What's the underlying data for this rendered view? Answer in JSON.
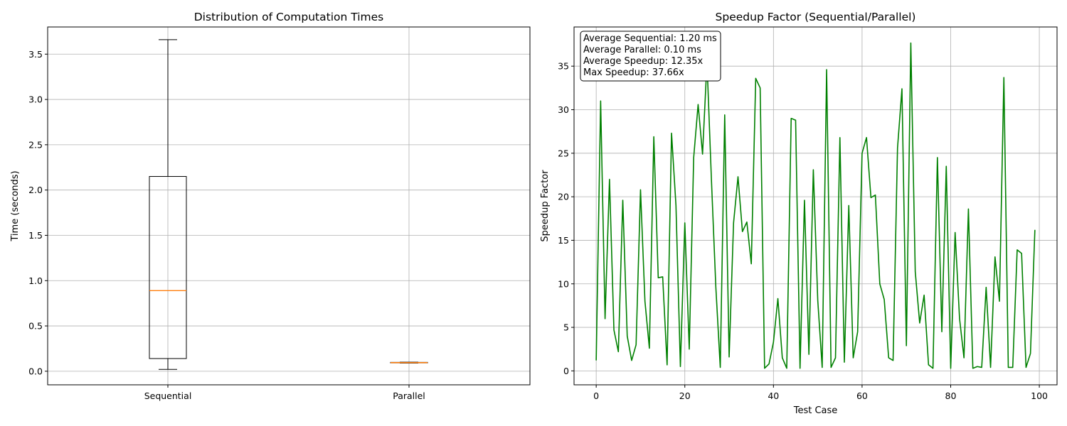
{
  "chart_data": [
    {
      "type": "box",
      "title": "Distribution of Computation Times",
      "xlabel": "",
      "ylabel": "Time (seconds)",
      "ylim": [
        -0.15,
        3.8
      ],
      "yticks": [
        0.0,
        0.5,
        1.0,
        1.5,
        2.0,
        2.5,
        3.0,
        3.5
      ],
      "ytick_labels": [
        "0.0",
        "0.5",
        "1.0",
        "1.5",
        "2.0",
        "2.5",
        "3.0",
        "3.5"
      ],
      "grid": true,
      "categories": [
        "Sequential",
        "Parallel"
      ],
      "boxes": [
        {
          "name": "Sequential",
          "whisker_low": 0.02,
          "q1": 0.14,
          "median": 0.89,
          "q3": 2.15,
          "whisker_high": 3.66
        },
        {
          "name": "Parallel",
          "whisker_low": 0.09,
          "q1": 0.092,
          "median": 0.095,
          "q3": 0.098,
          "whisker_high": 0.1
        }
      ],
      "colors": {
        "box": "#000000",
        "median": "#ff7f0e",
        "grid": "#b0b0b0"
      }
    },
    {
      "type": "line",
      "title": "Speedup Factor (Sequential/Parallel)",
      "xlabel": "Test Case",
      "ylabel": "Speedup Factor",
      "xlim": [
        -5,
        104
      ],
      "ylim": [
        -1.6,
        39.5
      ],
      "xticks": [
        0,
        20,
        40,
        60,
        80,
        100
      ],
      "xtick_labels": [
        "0",
        "20",
        "40",
        "60",
        "80",
        "100"
      ],
      "yticks": [
        0,
        5,
        10,
        15,
        20,
        25,
        30,
        35
      ],
      "ytick_labels": [
        "0",
        "5",
        "10",
        "15",
        "20",
        "25",
        "30",
        "35"
      ],
      "grid": true,
      "series": [
        {
          "color": "#008000",
          "y": [
            1.2,
            31.0,
            6.0,
            22.0,
            4.7,
            2.2,
            19.6,
            4.0,
            1.2,
            3.0,
            20.8,
            8.0,
            2.6,
            26.9,
            10.7,
            10.8,
            0.7,
            27.3,
            19.0,
            0.5,
            17.0,
            2.5,
            24.5,
            30.6,
            24.9,
            35.5,
            22.0,
            9.6,
            0.4,
            29.4,
            1.6,
            17.0,
            22.3,
            16.0,
            17.1,
            12.3,
            33.6,
            32.5,
            0.3,
            0.8,
            3.3,
            8.3,
            1.5,
            0.3,
            29.0,
            28.8,
            0.3,
            19.6,
            1.9,
            23.1,
            8.1,
            0.4,
            34.6,
            0.4,
            1.5,
            26.8,
            1.0,
            19.0,
            1.5,
            4.5,
            25.0,
            26.8,
            19.9,
            20.2,
            10.0,
            8.2,
            1.5,
            1.2,
            25.6,
            32.4,
            2.9,
            37.66,
            11.4,
            5.5,
            8.7,
            0.7,
            0.3,
            24.5,
            4.5,
            23.5,
            0.3,
            15.9,
            6.0,
            1.5,
            18.6,
            0.3,
            0.5,
            0.4,
            9.6,
            0.4,
            13.1,
            8.0,
            33.7,
            0.4,
            0.4,
            13.9,
            13.5,
            0.4,
            2.0,
            16.2
          ]
        }
      ],
      "legend": "none",
      "annotation": {
        "position": "top-left",
        "lines": [
          "Average Sequential: 1.20 ms",
          "Average Parallel: 0.10 ms",
          "Average Speedup: 12.35x",
          "Max Speedup: 37.66x"
        ]
      }
    }
  ]
}
